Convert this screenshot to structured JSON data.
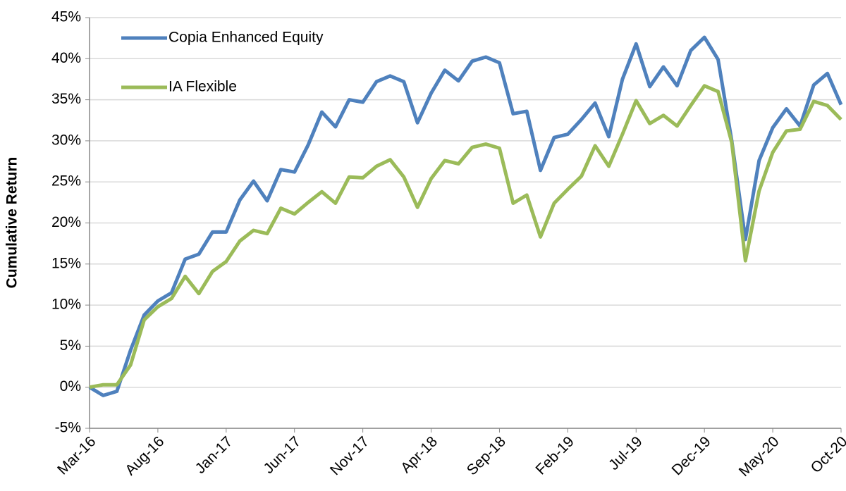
{
  "chart_data": {
    "type": "line",
    "y_label": "Cumulative Return",
    "categories": [
      "Mar-16",
      null,
      null,
      null,
      null,
      "Aug-16",
      null,
      null,
      null,
      null,
      "Jan-17",
      null,
      null,
      null,
      null,
      "Jun-17",
      null,
      null,
      null,
      null,
      "Nov-17",
      null,
      null,
      null,
      null,
      "Apr-18",
      null,
      null,
      null,
      null,
      "Sep-18",
      null,
      null,
      null,
      null,
      "Feb-19",
      null,
      null,
      null,
      null,
      "Jul-19",
      null,
      null,
      null,
      null,
      "Dec-19",
      null,
      null,
      null,
      null,
      "May-20",
      null,
      null,
      null,
      null,
      "Oct-20"
    ],
    "series": [
      {
        "name": "Copia Enhanced Equity",
        "color": "#4f81bd",
        "values": [
          0,
          -1.0,
          -0.5,
          4.5,
          8.8,
          10.5,
          11.5,
          15.6,
          16.2,
          18.9,
          18.9,
          22.8,
          25.1,
          22.7,
          26.5,
          26.2,
          29.5,
          33.5,
          31.7,
          35.0,
          34.7,
          37.2,
          37.9,
          37.2,
          32.2,
          35.8,
          38.6,
          37.3,
          39.7,
          40.2,
          39.5,
          33.3,
          33.6,
          26.4,
          30.4,
          30.8,
          32.6,
          34.6,
          30.5,
          37.5,
          41.8,
          36.6,
          39.0,
          36.7,
          41.0,
          42.6,
          39.9,
          30.0,
          18.0,
          27.6,
          31.6,
          33.9,
          31.8,
          36.8,
          38.2,
          34.4
        ]
      },
      {
        "name": "IA Flexible",
        "color": "#9bbb59",
        "values": [
          0,
          0.3,
          0.3,
          2.7,
          8.2,
          9.8,
          10.8,
          13.5,
          11.4,
          14.1,
          15.3,
          17.8,
          19.1,
          18.7,
          21.8,
          21.1,
          22.5,
          23.8,
          22.4,
          25.6,
          25.5,
          26.9,
          27.7,
          25.6,
          21.9,
          25.4,
          27.6,
          27.2,
          29.2,
          29.6,
          29.1,
          22.4,
          23.4,
          18.3,
          22.4,
          24.1,
          25.7,
          29.4,
          26.9,
          30.8,
          34.9,
          32.1,
          33.1,
          31.8,
          34.3,
          36.7,
          36.0,
          29.8,
          15.4,
          23.9,
          28.6,
          31.2,
          31.4,
          34.8,
          34.3,
          32.6
        ]
      }
    ],
    "ylim": [
      -5,
      45
    ],
    "yticks": [
      {
        "value": -5,
        "label": "-5%"
      },
      {
        "value": 0,
        "label": "0%"
      },
      {
        "value": 5,
        "label": "5%"
      },
      {
        "value": 10,
        "label": "10%"
      },
      {
        "value": 15,
        "label": "15%"
      },
      {
        "value": 20,
        "label": "20%"
      },
      {
        "value": 25,
        "label": "25%"
      },
      {
        "value": 30,
        "label": "30%"
      },
      {
        "value": 35,
        "label": "35%"
      },
      {
        "value": 40,
        "label": "40%"
      },
      {
        "value": 45,
        "label": "45%"
      }
    ],
    "grid": true,
    "legend": "upper left"
  }
}
